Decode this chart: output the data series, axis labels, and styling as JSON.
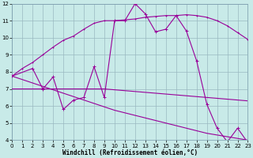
{
  "background_color": "#c8eae8",
  "line_color": "#990099",
  "grid_color": "#9ab8c0",
  "xlabel": "Windchill (Refroidissement éolien,°C)",
  "xlabel_fontsize": 5.5,
  "tick_fontsize": 5.0,
  "xlim": [
    0,
    23
  ],
  "ylim": [
    4,
    12
  ],
  "yticks": [
    4,
    5,
    6,
    7,
    8,
    9,
    10,
    11,
    12
  ],
  "xticks": [
    0,
    1,
    2,
    3,
    4,
    5,
    6,
    7,
    8,
    9,
    10,
    11,
    12,
    13,
    14,
    15,
    16,
    17,
    18,
    19,
    20,
    21,
    22,
    23
  ],
  "s1_x": [
    0,
    1,
    2,
    3,
    4,
    5,
    6,
    7,
    8,
    9,
    10,
    11,
    12,
    13,
    14,
    15,
    16,
    17,
    18,
    19,
    20,
    21,
    22,
    23
  ],
  "s1_y": [
    7.75,
    8.2,
    8.55,
    9.0,
    9.45,
    9.85,
    10.1,
    10.5,
    10.85,
    11.0,
    11.0,
    11.05,
    11.1,
    11.2,
    11.25,
    11.3,
    11.3,
    11.35,
    11.3,
    11.2,
    11.0,
    10.7,
    10.3,
    9.9
  ],
  "s2_x": [
    0,
    1,
    2,
    3,
    4,
    5,
    6,
    7,
    8,
    9,
    10,
    11,
    12,
    13,
    14,
    15,
    16,
    17,
    18,
    19,
    20,
    21,
    22,
    23
  ],
  "s2_y": [
    7.0,
    7.0,
    7.0,
    7.0,
    7.0,
    7.0,
    7.0,
    7.0,
    7.0,
    7.0,
    6.95,
    6.9,
    6.85,
    6.8,
    6.75,
    6.7,
    6.65,
    6.6,
    6.55,
    6.5,
    6.45,
    6.4,
    6.35,
    6.3
  ],
  "s3_x": [
    0,
    1,
    2,
    3,
    4,
    5,
    6,
    7,
    8,
    9,
    10,
    11,
    12,
    13,
    14,
    15,
    16,
    17,
    18,
    19,
    20,
    21,
    22,
    23
  ],
  "s3_y": [
    7.75,
    7.55,
    7.35,
    7.15,
    6.95,
    6.75,
    6.55,
    6.35,
    6.15,
    5.95,
    5.75,
    5.6,
    5.45,
    5.3,
    5.15,
    5.0,
    4.85,
    4.7,
    4.55,
    4.4,
    4.3,
    4.2,
    4.1,
    4.0
  ],
  "s4_x": [
    0,
    2,
    3,
    4,
    5,
    6,
    7,
    8,
    9,
    10,
    11,
    12,
    13,
    14,
    15,
    16,
    17,
    18,
    19,
    20,
    21,
    22,
    23
  ],
  "s4_y": [
    7.75,
    8.2,
    7.0,
    7.7,
    5.8,
    6.35,
    6.5,
    8.3,
    6.5,
    11.0,
    11.0,
    12.0,
    11.4,
    10.35,
    10.5,
    11.3,
    10.4,
    8.65,
    6.1,
    4.7,
    3.9,
    4.7,
    3.85
  ]
}
